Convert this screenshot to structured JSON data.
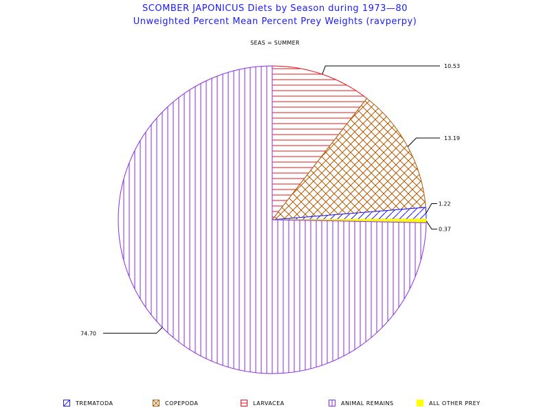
{
  "chart_data": {
    "type": "pie",
    "title": "SCOMBER JAPONICUS Diets by Season during 1973—80",
    "subtitle": "Unweighted Percent Mean Percent Prey  Weights (ravperpy)",
    "panel_label": "SEAS = SUMMER",
    "slices": [
      {
        "label": "LARVACEA",
        "value": 10.53,
        "value_label": "10.53",
        "color": "#e8121a",
        "pattern": "horizontal"
      },
      {
        "label": "COPEPODA",
        "value": 13.19,
        "value_label": "13.19",
        "color": "#b05a00",
        "pattern": "crosshatch"
      },
      {
        "label": "TREMATODA",
        "value": 1.22,
        "value_label": "1.22",
        "color": "#1a1aff",
        "pattern": "diagonal"
      },
      {
        "label": "ALL OTHER PREY",
        "value": 0.37,
        "value_label": "0.37",
        "color": "#ffff00",
        "pattern": "solid"
      },
      {
        "label": "ANIMAL REMAINS",
        "value": 74.7,
        "value_label": "74.70",
        "color": "#8a2be2",
        "pattern": "vertical"
      }
    ],
    "legend": [
      {
        "label": "TREMATODA",
        "color": "#1a1aff",
        "pattern": "diagonal"
      },
      {
        "label": "COPEPODA",
        "color": "#b05a00",
        "pattern": "crosshatch"
      },
      {
        "label": "LARVACEA",
        "color": "#e8121a",
        "pattern": "horizontal"
      },
      {
        "label": "ANIMAL REMAINS",
        "color": "#8a2be2",
        "pattern": "vertical"
      },
      {
        "label": "ALL OTHER PREY",
        "color": "#ffff00",
        "pattern": "solid"
      }
    ]
  }
}
